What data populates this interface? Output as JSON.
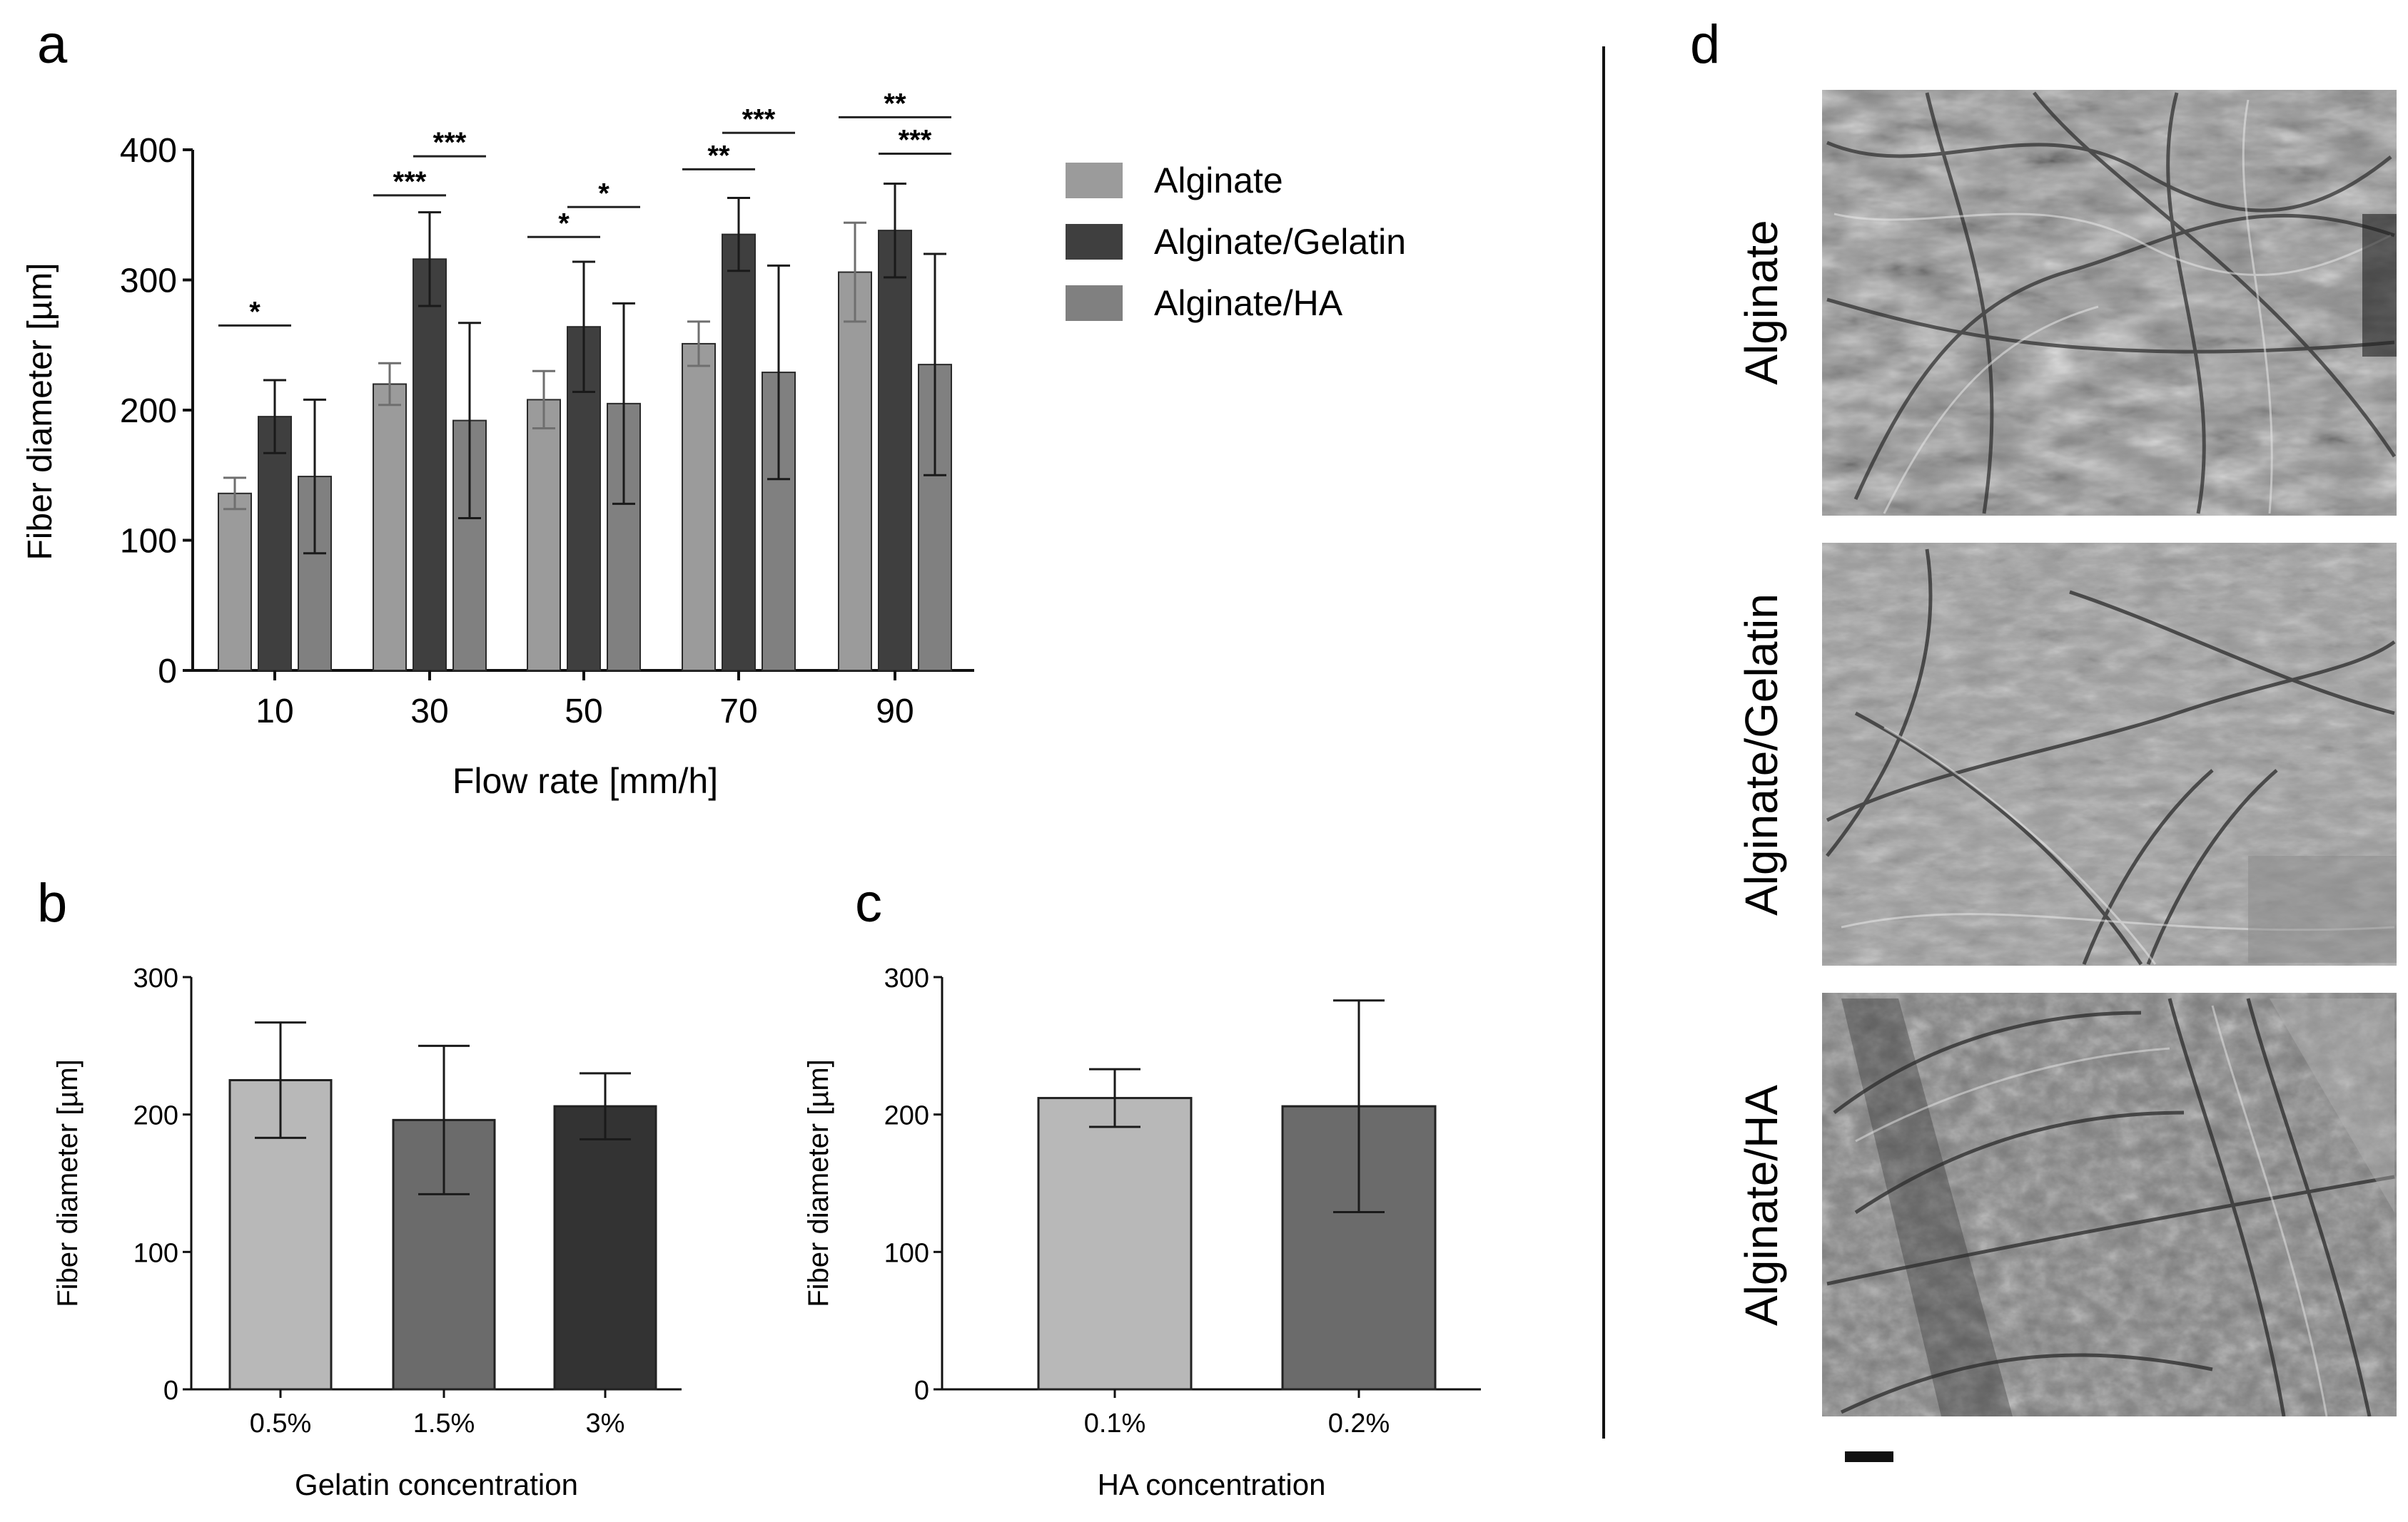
{
  "panel_labels": {
    "a": "a",
    "b": "b",
    "c": "c",
    "d": "d"
  },
  "colors": {
    "alginate": "#9b9b9b",
    "alginate_gelatin": "#3f3f3f",
    "alginate_ha": "#808080",
    "b_0_5": "#b8b8b8",
    "b_1_5": "#6b6b6b",
    "b_3": "#333333",
    "c_0_1": "#b8b8b8",
    "c_0_2": "#6b6b6b",
    "axis": "#111111"
  },
  "chart_data": [
    {
      "id": "a",
      "type": "bar",
      "xlabel": "Flow rate [mm/h]",
      "ylabel": "Fiber diameter [µm]",
      "ylim": [
        0,
        400
      ],
      "yticks": [
        "0",
        "100",
        "200",
        "300",
        "400"
      ],
      "categories": [
        "10",
        "30",
        "50",
        "70",
        "90"
      ],
      "series": [
        {
          "name": "Alginate",
          "values": [
            136,
            220,
            208,
            251,
            306
          ],
          "errors": [
            12,
            16,
            22,
            17,
            38
          ]
        },
        {
          "name": "Alginate/Gelatin",
          "values": [
            195,
            316,
            264,
            335,
            338
          ],
          "errors": [
            28,
            36,
            50,
            28,
            36
          ]
        },
        {
          "name": "Alginate/HA",
          "values": [
            149,
            192,
            205,
            229,
            235
          ],
          "errors": [
            59,
            75,
            77,
            82,
            85
          ]
        }
      ],
      "legend": [
        "Alginate",
        "Alginate/Gelatin",
        "Alginate/HA"
      ],
      "significance": [
        {
          "category": "10",
          "from": "Alginate",
          "to": "Alginate/Gelatin",
          "label": "*",
          "level": 0,
          "yvalue": 265
        },
        {
          "category": "30",
          "from": "Alginate",
          "to": "Alginate/Gelatin",
          "label": "***",
          "level": 0,
          "yvalue": 365
        },
        {
          "category": "30",
          "from": "Alginate/Gelatin",
          "to": "Alginate/HA",
          "label": "***",
          "level": 0,
          "yvalue": 395
        },
        {
          "category": "50",
          "from": "Alginate",
          "to": "Alginate/Gelatin",
          "label": "*",
          "level": 0,
          "yvalue": 333
        },
        {
          "category": "50",
          "from": "Alginate/Gelatin",
          "to": "Alginate/HA",
          "label": "*",
          "level": 0,
          "yvalue": 356
        },
        {
          "category": "70",
          "from": "Alginate",
          "to": "Alginate/Gelatin",
          "label": "**",
          "level": 0,
          "yvalue": 385
        },
        {
          "category": "70",
          "from": "Alginate/Gelatin",
          "to": "Alginate/HA",
          "label": "***",
          "level": 0,
          "yvalue": 413
        },
        {
          "category": "90",
          "from": "Alginate",
          "to": "Alginate/HA",
          "label": "**",
          "level": 0,
          "yvalue": 425
        },
        {
          "category": "90",
          "from": "Alginate/Gelatin",
          "to": "Alginate/HA",
          "label": "***",
          "level": 0,
          "yvalue": 397
        }
      ]
    },
    {
      "id": "b",
      "type": "bar",
      "xlabel": "Gelatin concentration",
      "ylabel": "Fiber diameter [µm]",
      "ylim": [
        0,
        300
      ],
      "yticks": [
        "0",
        "100",
        "200",
        "300"
      ],
      "categories": [
        "0.5%",
        "1.5%",
        "3%"
      ],
      "values": [
        225,
        196,
        206
      ],
      "errors": [
        42,
        54,
        24
      ]
    },
    {
      "id": "c",
      "type": "bar",
      "xlabel": "HA concentration",
      "ylabel": "Fiber diameter [µm]",
      "ylim": [
        0,
        300
      ],
      "yticks": [
        "0",
        "100",
        "200",
        "300"
      ],
      "categories": [
        "0.1%",
        "0.2%"
      ],
      "values": [
        212,
        206
      ],
      "errors": [
        21,
        77
      ]
    }
  ],
  "micrographs": {
    "row_labels": [
      "Alginate",
      "Alginate/Gelatin",
      "Alginate/HA"
    ]
  }
}
